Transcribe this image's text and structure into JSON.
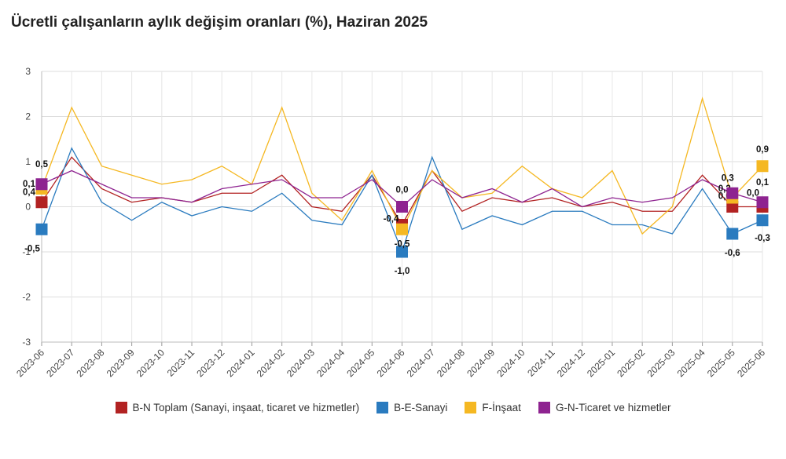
{
  "chart_data": {
    "type": "line",
    "title": "Ücretli çalışanların aylık değişim oranları (%), Haziran 2025",
    "xlabel": "",
    "ylabel": "",
    "ylim": [
      -3,
      3
    ],
    "yticks": [
      "3",
      "2",
      "1",
      "0",
      "-1",
      "-2",
      "-3"
    ],
    "grid": true,
    "legend_position": "bottom",
    "categories": [
      "2023-06",
      "2023-07",
      "2023-08",
      "2023-09",
      "2023-10",
      "2023-11",
      "2023-12",
      "2024-01",
      "2024-02",
      "2024-03",
      "2024-04",
      "2024-05",
      "2024-06",
      "2024-07",
      "2024-08",
      "2024-09",
      "2024-10",
      "2024-11",
      "2024-12",
      "2025-01",
      "2025-02",
      "2025-03",
      "2025-04",
      "2025-05",
      "2025-06"
    ],
    "series": [
      {
        "name": "B-N Toplam (Sanayi, inşaat, ticaret ve hizmetler)",
        "color": "#b22222",
        "values": [
          0.1,
          1.1,
          0.4,
          0.1,
          0.2,
          0.1,
          0.3,
          0.3,
          0.7,
          0.0,
          -0.1,
          0.7,
          -0.4,
          0.8,
          -0.1,
          0.2,
          0.1,
          0.2,
          0.0,
          0.1,
          -0.1,
          -0.1,
          0.7,
          0.0,
          0.0
        ],
        "labels": [
          "0,1",
          "",
          "",
          "",
          "",
          "",
          "",
          "",
          "",
          "",
          "",
          "",
          "-0,4",
          "",
          "",
          "",
          "",
          "",
          "",
          "",
          "",
          "",
          "",
          "0,0",
          "0,0"
        ]
      },
      {
        "name": "B-E-Sanayi",
        "color": "#2a7bbf",
        "values": [
          -0.5,
          1.3,
          0.1,
          -0.3,
          0.1,
          -0.2,
          0.0,
          -0.1,
          0.3,
          -0.3,
          -0.4,
          0.7,
          -1.0,
          1.1,
          -0.5,
          -0.2,
          -0.4,
          -0.1,
          -0.1,
          -0.4,
          -0.4,
          -0.6,
          0.4,
          -0.6,
          -0.3
        ],
        "labels": [
          "-0,5",
          "",
          "",
          "",
          "",
          "",
          "",
          "",
          "",
          "",
          "",
          "",
          "-1,0",
          "",
          "",
          "",
          "",
          "",
          "",
          "",
          "",
          "",
          "",
          "-0,6",
          "-0,3"
        ]
      },
      {
        "name": "F-İnşaat",
        "color": "#f5b822",
        "values": [
          0.4,
          2.2,
          0.9,
          0.7,
          0.5,
          0.6,
          0.9,
          0.5,
          2.2,
          0.3,
          -0.3,
          0.8,
          -0.5,
          0.8,
          0.2,
          0.3,
          0.9,
          0.4,
          0.2,
          0.8,
          -0.6,
          0.0,
          2.4,
          0.2,
          0.9
        ],
        "labels": [
          "0,4",
          "",
          "",
          "",
          "",
          "",
          "",
          "",
          "",
          "",
          "",
          "",
          "-0,5",
          "",
          "",
          "",
          "",
          "",
          "",
          "",
          "",
          "",
          "",
          "0,2",
          "0,9"
        ]
      },
      {
        "name": "G-N-Ticaret ve hizmetler",
        "color": "#8e2390",
        "values": [
          0.5,
          0.8,
          0.5,
          0.2,
          0.2,
          0.1,
          0.4,
          0.5,
          0.6,
          0.2,
          0.2,
          0.6,
          0.0,
          0.6,
          0.2,
          0.4,
          0.1,
          0.4,
          0.0,
          0.2,
          0.1,
          0.2,
          0.6,
          0.3,
          0.1
        ],
        "labels": [
          "0,5",
          "",
          "",
          "",
          "",
          "",
          "",
          "",
          "",
          "",
          "",
          "",
          "0,0",
          "",
          "",
          "",
          "",
          "",
          "",
          "",
          "",
          "",
          "",
          "0,3",
          "0,1"
        ]
      }
    ]
  }
}
